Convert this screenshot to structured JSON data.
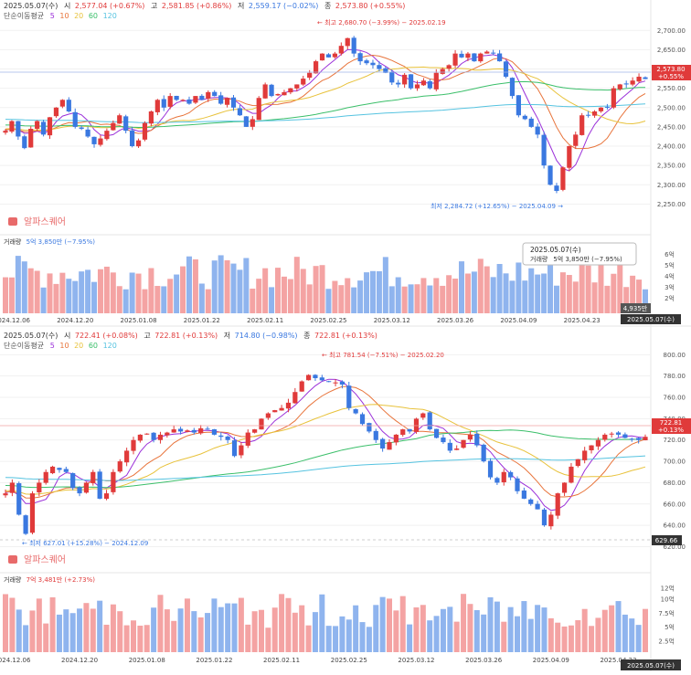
{
  "chart_data": [
    {
      "type": "candlestick",
      "date": "2025.05.07(수)",
      "ohlc_labels": {
        "open": "시",
        "high": "고",
        "low": "저",
        "close": "종"
      },
      "open": "2,577.04 (+0.67%)",
      "high": "2,581.85 (+0.86%)",
      "low": "2,559.17 (−0.02%)",
      "close": "2,573.80 (+0.55%)",
      "ma_label": "단순이동평균",
      "ma_periods": [
        "5",
        "10",
        "20",
        "60",
        "120"
      ],
      "ma_colors": [
        "#9b30d9",
        "#e8743b",
        "#e8c23b",
        "#3bbf6a",
        "#55c3e0"
      ],
      "y_ticks": [
        2700,
        2650,
        2600,
        2550,
        2500,
        2450,
        2400,
        2350,
        2300,
        2250
      ],
      "y_tick_labels": [
        "2,700.00",
        "2,650.00",
        "2,600.00",
        "2,550.00",
        "2,500.00",
        "2,450.00",
        "2,400.00",
        "2,350.00",
        "2,300.00",
        "2,250.00"
      ],
      "ylim": [
        2232,
        2722
      ],
      "last_price": "2,573.80",
      "last_change": "+0.55%",
      "high_annotation": "최고 2,680.70 (−3.99%) − 2025.02.19",
      "low_annotation": "최저 2,284.72 (+12.65%) − 2025.04.09",
      "logo_text": "알파스퀘어",
      "volume": {
        "label": "거래량",
        "value": "5억 3,850만 (−7.95%)",
        "y_ticks": [
          6,
          5,
          4,
          3,
          2
        ],
        "y_tick_labels": [
          "6억",
          "5억",
          "4억",
          "3억",
          "2억"
        ],
        "ylim": [
          0.6,
          6.9
        ],
        "last_label": "4,935만"
      },
      "tooltip": {
        "date": "2025.05.07(수)",
        "label": "거래량",
        "value": "5억 3,850만 (−7.95%)"
      },
      "x_labels": [
        "2024.12.06",
        "2024.12.20",
        "2025.01.08",
        "2025.01.22",
        "2025.02.11",
        "2025.02.25",
        "2025.03.12",
        "2025.03.26",
        "2025.04.09",
        "2025.04.23"
      ],
      "x_label_index": [
        1,
        11,
        21,
        31,
        41,
        51,
        61,
        71,
        81,
        91
      ],
      "current_date_label": "2025.05.07(수)",
      "closes": [
        2440,
        2465,
        2425,
        2395,
        2445,
        2465,
        2430,
        2475,
        2500,
        2520,
        2490,
        2450,
        2445,
        2425,
        2405,
        2420,
        2440,
        2460,
        2480,
        2440,
        2400,
        2415,
        2460,
        2490,
        2520,
        2500,
        2530,
        2520,
        2520,
        2510,
        2530,
        2520,
        2540,
        2530,
        2510,
        2525,
        2500,
        2480,
        2450,
        2470,
        2525,
        2560,
        2530,
        2535,
        2540,
        2550,
        2560,
        2575,
        2590,
        2620,
        2640,
        2630,
        2640,
        2660,
        2680,
        2640,
        2620,
        2615,
        2610,
        2600,
        2590,
        2565,
        2560,
        2585,
        2550,
        2560,
        2570,
        2550,
        2590,
        2600,
        2610,
        2640,
        2630,
        2640,
        2620,
        2640,
        2645,
        2640,
        2620,
        2580,
        2530,
        2480,
        2470,
        2450,
        2430,
        2350,
        2300,
        2284,
        2345,
        2400,
        2430,
        2480,
        2480,
        2490,
        2500,
        2500,
        2550,
        2560,
        2560,
        2570,
        2580,
        2574
      ]
    },
    {
      "type": "candlestick",
      "date": "2025.05.07(수)",
      "ohlc_labels": {
        "open": "시",
        "high": "고",
        "low": "저",
        "close": "종"
      },
      "open": "722.41 (+0.08%)",
      "high": "722.81 (+0.13%)",
      "low": "714.80 (−0.98%)",
      "close": "722.81 (+0.13%)",
      "ma_label": "단순이동평균",
      "ma_periods": [
        "5",
        "10",
        "20",
        "60",
        "120"
      ],
      "ma_colors": [
        "#9b30d9",
        "#e8743b",
        "#e8c23b",
        "#3bbf6a",
        "#55c3e0"
      ],
      "y_ticks": [
        800,
        780,
        760,
        740,
        720,
        700,
        680,
        660,
        640,
        620
      ],
      "y_tick_labels": [
        "800.00",
        "780.00",
        "760.00",
        "740.00",
        "720.00",
        "700.00",
        "680.00",
        "660.00",
        "640.00",
        "620.00"
      ],
      "ylim": [
        617,
        802
      ],
      "last_price": "722.81",
      "last_change": "+0.13%",
      "ref_price": "629.66",
      "high_annotation": "최고 781.54 (−7.51%) − 2025.02.20",
      "low_annotation": "최저 627.01 (+15.28%) − 2024.12.09",
      "logo_text": "알파스퀘어",
      "volume": {
        "label": "거래량",
        "value": "7억 3,481만 (+2.73%)",
        "y_ticks": [
          12,
          10,
          7.5,
          5,
          2.5
        ],
        "y_tick_labels": [
          "12억",
          "10억",
          "7.5억",
          "5억",
          "2.5억"
        ],
        "ylim": [
          0.5,
          13
        ]
      },
      "x_labels": [
        "2024.12.06",
        "2024.12.20",
        "2025.01.08",
        "2025.01.22",
        "2025.02.11",
        "2025.02.25",
        "2025.03.12",
        "2025.03.26",
        "2025.04.09",
        "2025.04.23"
      ],
      "x_label_index": [
        1,
        11,
        21,
        31,
        41,
        51,
        61,
        71,
        81,
        91
      ],
      "current_date_label": "2025.05.07(수)",
      "closes": [
        670,
        680,
        650,
        632,
        670,
        680,
        690,
        695,
        692,
        690,
        675,
        670,
        680,
        690,
        665,
        670,
        690,
        700,
        710,
        720,
        725,
        726,
        720,
        725,
        727,
        730,
        728,
        729,
        727,
        731,
        730,
        725,
        723,
        720,
        705,
        715,
        727,
        730,
        740,
        745,
        748,
        750,
        755,
        765,
        775,
        781,
        778,
        776,
        775,
        774,
        772,
        750,
        745,
        735,
        728,
        720,
        712,
        718,
        725,
        730,
        728,
        740,
        745,
        730,
        722,
        718,
        710,
        712,
        720,
        725,
        715,
        700,
        685,
        680,
        690,
        685,
        672,
        665,
        660,
        655,
        640,
        650,
        670,
        680,
        695,
        702,
        710,
        715,
        720,
        725,
        726,
        725,
        722,
        721,
        720,
        723
      ]
    }
  ]
}
